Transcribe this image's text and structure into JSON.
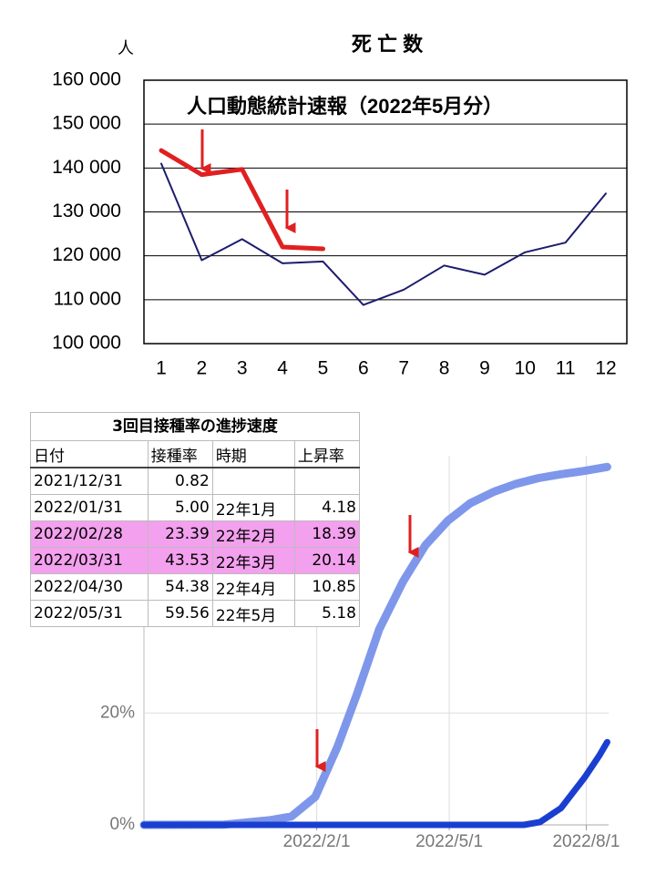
{
  "chart_data": [
    {
      "type": "line",
      "title": "死 亡 数",
      "ylabel": "人",
      "annotation": "人口動態統計速報（2022年5月分）",
      "categories": [
        1,
        2,
        3,
        4,
        5,
        6,
        7,
        8,
        9,
        10,
        11,
        12
      ],
      "series": [
        {
          "color": "#1c1c6e",
          "values": [
            141000,
            119000,
            123800,
            118300,
            118700,
            108800,
            112300,
            117800,
            115700,
            120800,
            123000,
            134200
          ]
        },
        {
          "color": "#e02020",
          "values": [
            144000,
            138500,
            139700,
            122000,
            121600,
            null,
            null,
            null,
            null,
            null,
            null,
            null
          ]
        }
      ],
      "ylim": [
        100000,
        160000
      ],
      "yticks": [
        {
          "value": 100000,
          "label": "100 000"
        },
        {
          "value": 110000,
          "label": "110 000"
        },
        {
          "value": 120000,
          "label": "120 000"
        },
        {
          "value": 130000,
          "label": "130 000"
        },
        {
          "value": 140000,
          "label": "140 000"
        },
        {
          "value": 150000,
          "label": "150 000"
        },
        {
          "value": 160000,
          "label": "160 000"
        }
      ],
      "grid": true
    },
    {
      "type": "line",
      "series": [
        {
          "color": "#7f97ea",
          "x": [
            "2021-10-08",
            "2021-12-01",
            "2021-12-31",
            "2022-01-15",
            "2022-01-31",
            "2022-02-15",
            "2022-02-28",
            "2022-03-15",
            "2022-03-31",
            "2022-04-15",
            "2022-04-30",
            "2022-05-15",
            "2022-05-31",
            "2022-06-15",
            "2022-06-30",
            "2022-07-15",
            "2022-07-31",
            "2022-08-15"
          ],
          "values": [
            0,
            0.05,
            0.82,
            1.5,
            5,
            14,
            23.39,
            35,
            43.53,
            50,
            54.38,
            57.5,
            59.56,
            61,
            62,
            62.7,
            63.3,
            64
          ]
        },
        {
          "color": "#1a3fd0",
          "x": [
            "2021-10-08",
            "2022-06-20",
            "2022-07-01",
            "2022-07-15",
            "2022-07-31",
            "2022-08-10",
            "2022-08-15"
          ],
          "values": [
            0,
            0,
            0.5,
            3,
            8.5,
            12.5,
            14.8
          ]
        }
      ],
      "xlim": [
        "2021-10-08",
        "2022-08-16"
      ],
      "xticks": [
        {
          "value": "2022-02-01",
          "label": "2022/2/1"
        },
        {
          "value": "2022-05-01",
          "label": "2022/5/1"
        },
        {
          "value": "2022-08-01",
          "label": "2022/8/1"
        }
      ],
      "ylim": [
        0,
        66
      ],
      "yticks": [
        {
          "value": 0,
          "label": "0%"
        },
        {
          "value": 20,
          "label": "20%"
        }
      ],
      "grid": true
    }
  ],
  "table": {
    "title": "3回目接種率の進捗速度",
    "header": [
      "日付",
      "接種率",
      "時期",
      "上昇率"
    ],
    "rows": [
      [
        "2021/12/31",
        "0.82",
        null,
        null
      ],
      [
        "2022/01/31",
        "5.00",
        "22年1月",
        "4.18"
      ],
      [
        "2022/02/28",
        "23.39",
        "22年2月",
        "18.39"
      ],
      [
        "2022/03/31",
        "43.53",
        "22年3月",
        "20.14"
      ],
      [
        "2022/04/30",
        "54.38",
        "22年4月",
        "10.85"
      ],
      [
        "2022/05/31",
        "59.56",
        "22年5月",
        "5.18"
      ]
    ]
  }
}
